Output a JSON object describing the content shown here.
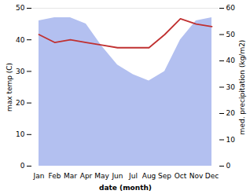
{
  "chart_data": {
    "type": "combo",
    "categories": [
      "Jan",
      "Feb",
      "Mar",
      "Apr",
      "May",
      "Jun",
      "Jul",
      "Aug",
      "Sep",
      "Oct",
      "Nov",
      "Dec"
    ],
    "series": [
      {
        "type": "area",
        "color": "#b3c0f0",
        "values": [
          46,
          47,
          47,
          45,
          38,
          32,
          29,
          27,
          30,
          40,
          46,
          47
        ]
      },
      {
        "type": "line",
        "color": "#c03030",
        "axis": "y2",
        "values": [
          50,
          47,
          48,
          47,
          46,
          45,
          45,
          45,
          50,
          56,
          54,
          53
        ]
      }
    ],
    "xlabel": "date (month)",
    "ylabel": "max temp (C)",
    "y2label": "med. precipitation (kg/m2)",
    "ylim": [
      0,
      50
    ],
    "yticks": [
      0,
      10,
      20,
      30,
      40,
      50
    ],
    "y2lim": [
      0,
      60
    ],
    "y2ticks": [
      0,
      10,
      20,
      30,
      40,
      50,
      60
    ],
    "grid": false
  }
}
